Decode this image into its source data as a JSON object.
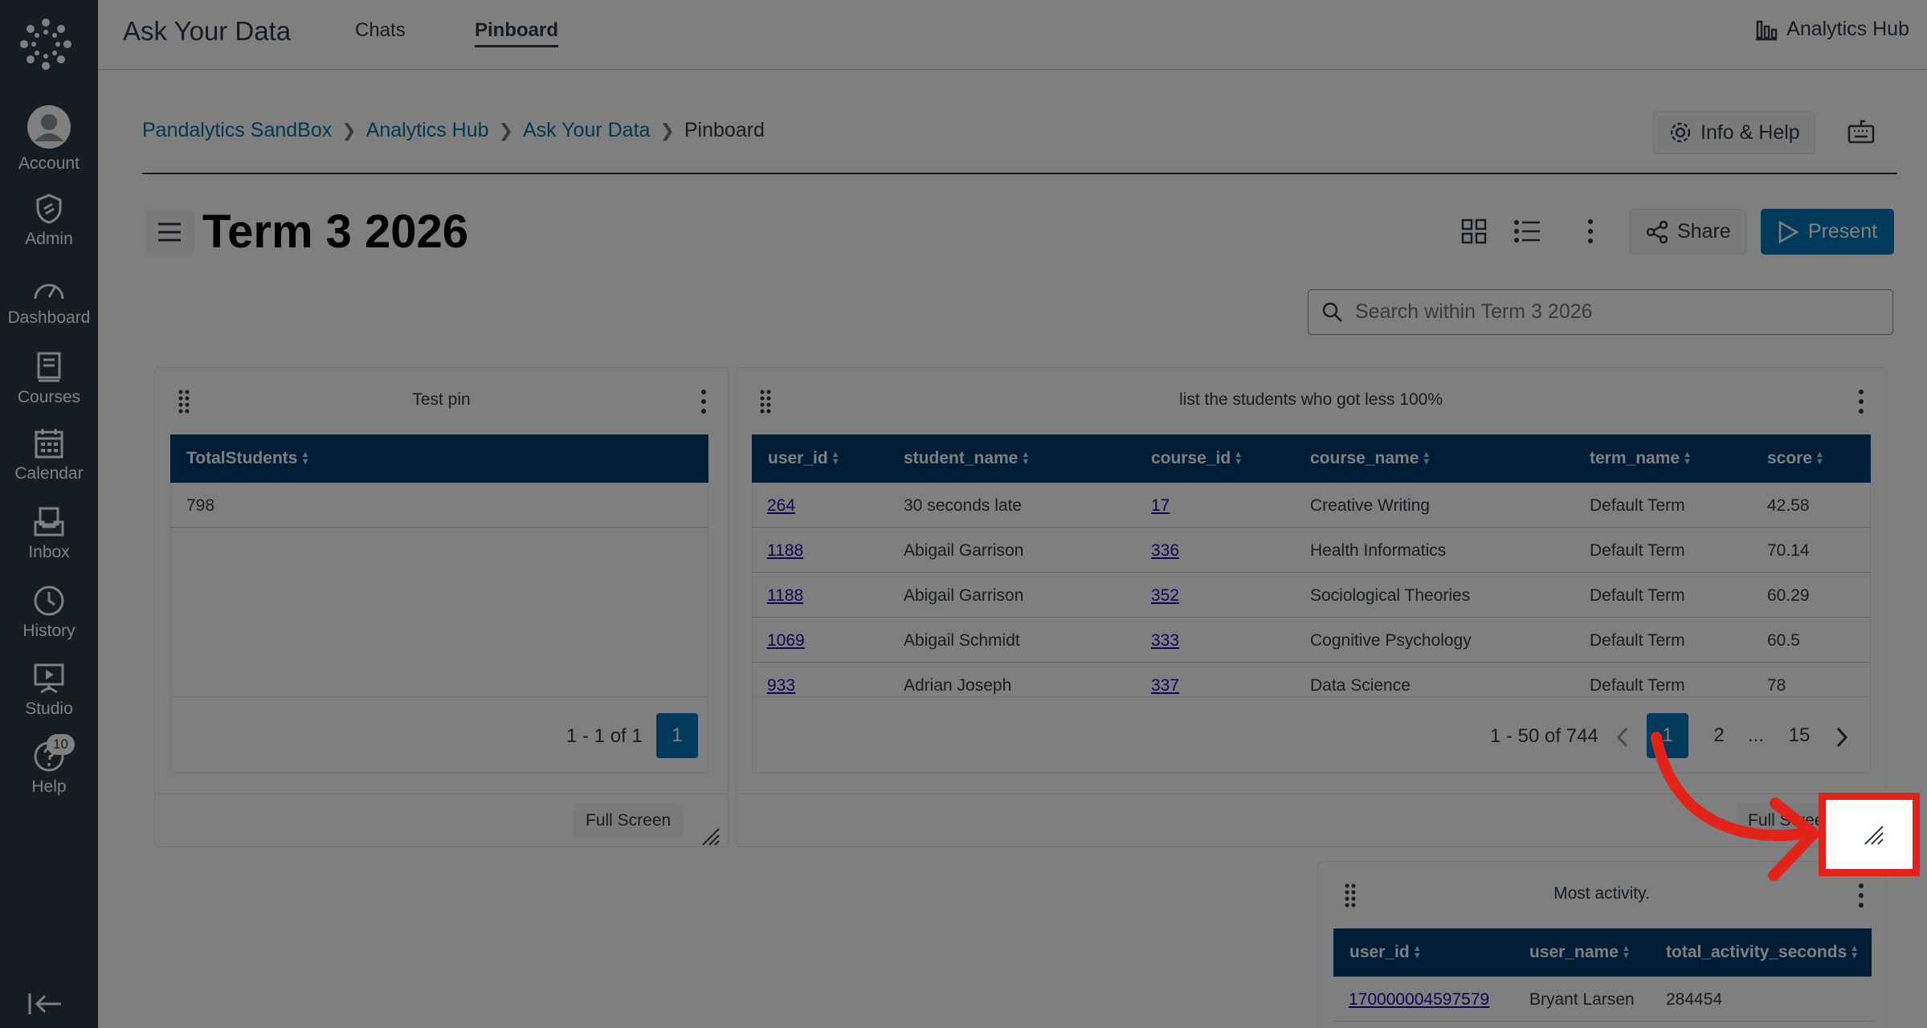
{
  "sidebar": {
    "items": [
      {
        "label": "Account",
        "icon": "avatar-icon"
      },
      {
        "label": "Admin",
        "icon": "shield-icon"
      },
      {
        "label": "Dashboard",
        "icon": "speedometer-icon"
      },
      {
        "label": "Courses",
        "icon": "book-icon"
      },
      {
        "label": "Calendar",
        "icon": "calendar-icon"
      },
      {
        "label": "Inbox",
        "icon": "inbox-icon"
      },
      {
        "label": "History",
        "icon": "clock-icon"
      },
      {
        "label": "Studio",
        "icon": "studio-icon"
      },
      {
        "label": "Help",
        "icon": "help-icon",
        "badge": "10"
      }
    ]
  },
  "topbar": {
    "title": "Ask Your Data",
    "tabs": [
      {
        "label": "Chats",
        "active": false
      },
      {
        "label": "Pinboard",
        "active": true
      }
    ],
    "hub_label": "Analytics Hub"
  },
  "breadcrumb": {
    "items": [
      "Pandalytics SandBox",
      "Analytics Hub",
      "Ask Your Data"
    ],
    "current": "Pinboard"
  },
  "info_help_label": "Info & Help",
  "page_title": "Term 3 2026",
  "share_label": "Share",
  "present_label": "Present",
  "search": {
    "placeholder": "Search within Term 3 2026"
  },
  "cards": {
    "test_pin": {
      "title": "Test pin",
      "columns": [
        "TotalStudents"
      ],
      "rows": [
        [
          "798"
        ]
      ],
      "pager": "1 - 1 of 1",
      "current_page": "1",
      "full_screen_label": "Full Screen"
    },
    "students": {
      "title": "list the students who got less 100%",
      "columns": [
        "user_id",
        "student_name",
        "course_id",
        "course_name",
        "term_name",
        "score"
      ],
      "rows": [
        [
          "264",
          "30 seconds late",
          "17",
          "Creative Writing",
          "Default Term",
          "42.58"
        ],
        [
          "1188",
          "Abigail Garrison",
          "336",
          "Health Informatics",
          "Default Term",
          "70.14"
        ],
        [
          "1188",
          "Abigail Garrison",
          "352",
          "Sociological Theories",
          "Default Term",
          "60.29"
        ],
        [
          "1069",
          "Abigail Schmidt",
          "333",
          "Cognitive Psychology",
          "Default Term",
          "60.5"
        ],
        [
          "933",
          "Adrian Joseph",
          "337",
          "Data Science",
          "Default Term",
          "78"
        ]
      ],
      "pager": "1 - 50 of 744",
      "pages": [
        "1",
        "2",
        "...",
        "15"
      ],
      "full_screen_label": "Full Screen"
    },
    "activity": {
      "title": "Most activity.",
      "columns": [
        "user_id",
        "user_name",
        "total_activity_seconds"
      ],
      "rows": [
        [
          "170000004597579",
          "Bryant Larsen",
          "284454"
        ]
      ]
    }
  },
  "colors": {
    "sidebar_bg": "#2d3b45",
    "table_header": "#003b71",
    "primary_button": "#0374b5",
    "highlight": "#e2231a"
  }
}
